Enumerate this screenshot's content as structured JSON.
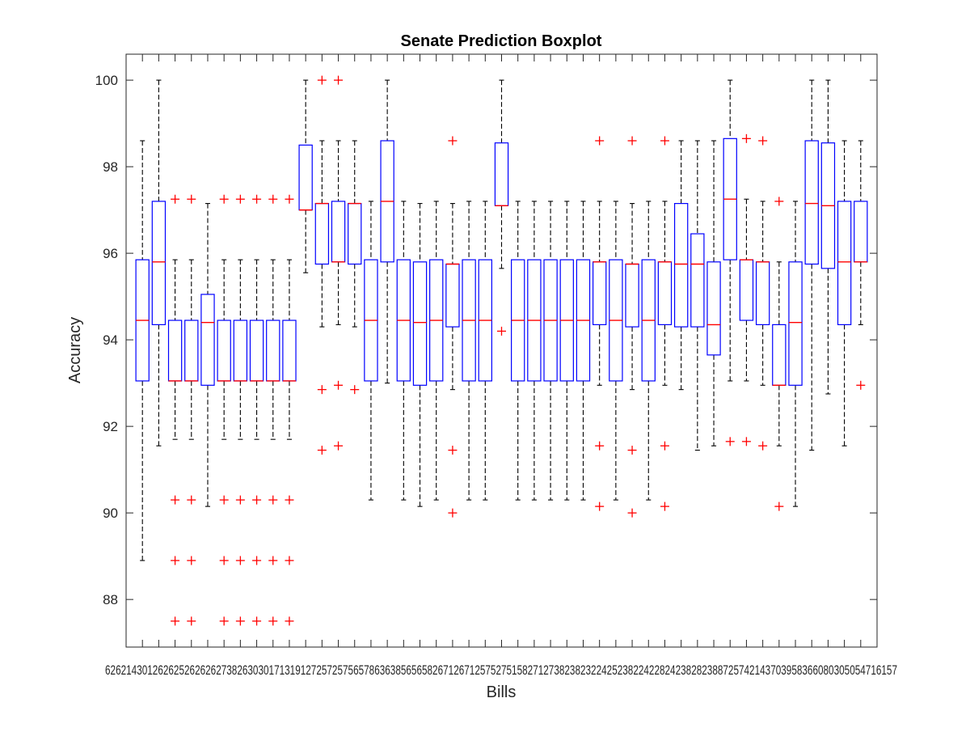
{
  "chart_data": {
    "type": "boxplot",
    "title": "Senate Prediction Boxplot",
    "xlabel": "Bills",
    "ylabel": "Accuracy",
    "ylim": [
      86.9,
      100.6
    ],
    "yticks": [
      88,
      90,
      92,
      94,
      96,
      98,
      100
    ],
    "colors": {
      "box": "#0000ff",
      "median": "#ff0000",
      "whisker": "#000000",
      "outlier": "#ff0000",
      "axes": "#262626"
    },
    "x_tick_labels_visible": "626214301262625262626273826303017131912725725756578636385656582671267125752751582712738238232242523822422824238282388725742143703958366080305054716157",
    "boxes": [
      {
        "lw": 88.9,
        "q1": 93.05,
        "med": 94.45,
        "q3": 95.85,
        "uw": 98.6,
        "out": []
      },
      {
        "lw": 91.55,
        "q1": 94.35,
        "med": 95.8,
        "q3": 97.2,
        "uw": 100.0,
        "out": []
      },
      {
        "lw": 91.7,
        "q1": 93.05,
        "med": 93.05,
        "q3": 94.45,
        "uw": 95.85,
        "out": [
          97.25,
          90.3,
          88.9,
          87.5
        ]
      },
      {
        "lw": 91.7,
        "q1": 93.05,
        "med": 93.05,
        "q3": 94.45,
        "uw": 95.85,
        "out": [
          97.25,
          90.3,
          88.9,
          87.5
        ]
      },
      {
        "lw": 90.15,
        "q1": 92.95,
        "med": 94.4,
        "q3": 95.05,
        "uw": 97.15,
        "out": []
      },
      {
        "lw": 91.7,
        "q1": 93.05,
        "med": 93.05,
        "q3": 94.45,
        "uw": 95.85,
        "out": [
          97.25,
          90.3,
          88.9,
          87.5
        ]
      },
      {
        "lw": 91.7,
        "q1": 93.05,
        "med": 93.05,
        "q3": 94.45,
        "uw": 95.85,
        "out": [
          97.25,
          90.3,
          88.9,
          87.5
        ]
      },
      {
        "lw": 91.7,
        "q1": 93.05,
        "med": 93.05,
        "q3": 94.45,
        "uw": 95.85,
        "out": [
          97.25,
          90.3,
          88.9,
          87.5
        ]
      },
      {
        "lw": 91.7,
        "q1": 93.05,
        "med": 93.05,
        "q3": 94.45,
        "uw": 95.85,
        "out": [
          97.25,
          90.3,
          88.9,
          87.5
        ]
      },
      {
        "lw": 91.7,
        "q1": 93.05,
        "med": 93.05,
        "q3": 94.45,
        "uw": 95.85,
        "out": [
          97.25,
          90.3,
          88.9,
          87.5
        ]
      },
      {
        "lw": 95.55,
        "q1": 97.0,
        "med": 97.0,
        "q3": 98.5,
        "uw": 100.0,
        "out": []
      },
      {
        "lw": 94.3,
        "q1": 95.75,
        "med": 97.15,
        "q3": 97.15,
        "uw": 98.6,
        "out": [
          100.0,
          92.85,
          91.45
        ]
      },
      {
        "lw": 94.35,
        "q1": 95.8,
        "med": 95.8,
        "q3": 97.2,
        "uw": 98.6,
        "out": [
          100.0,
          92.95,
          91.55
        ]
      },
      {
        "lw": 94.3,
        "q1": 95.75,
        "med": 97.15,
        "q3": 97.15,
        "uw": 98.6,
        "out": [
          92.85
        ]
      },
      {
        "lw": 90.3,
        "q1": 93.05,
        "med": 94.45,
        "q3": 95.85,
        "uw": 97.2,
        "out": []
      },
      {
        "lw": 93.0,
        "q1": 95.8,
        "med": 97.2,
        "q3": 98.6,
        "uw": 100.0,
        "out": []
      },
      {
        "lw": 90.3,
        "q1": 93.05,
        "med": 94.45,
        "q3": 95.85,
        "uw": 97.2,
        "out": []
      },
      {
        "lw": 90.15,
        "q1": 92.95,
        "med": 94.4,
        "q3": 95.8,
        "uw": 97.15,
        "out": []
      },
      {
        "lw": 90.3,
        "q1": 93.05,
        "med": 94.45,
        "q3": 95.85,
        "uw": 97.2,
        "out": []
      },
      {
        "lw": 92.85,
        "q1": 94.3,
        "med": 95.75,
        "q3": 95.75,
        "uw": 97.15,
        "out": [
          98.6,
          91.45,
          90.0
        ]
      },
      {
        "lw": 90.3,
        "q1": 93.05,
        "med": 94.45,
        "q3": 95.85,
        "uw": 97.2,
        "out": []
      },
      {
        "lw": 90.3,
        "q1": 93.05,
        "med": 94.45,
        "q3": 95.85,
        "uw": 97.2,
        "out": []
      },
      {
        "lw": 95.65,
        "q1": 97.1,
        "med": 97.1,
        "q3": 98.55,
        "uw": 100.0,
        "out": [
          94.2
        ]
      },
      {
        "lw": 90.3,
        "q1": 93.05,
        "med": 94.45,
        "q3": 95.85,
        "uw": 97.2,
        "out": []
      },
      {
        "lw": 90.3,
        "q1": 93.05,
        "med": 94.45,
        "q3": 95.85,
        "uw": 97.2,
        "out": []
      },
      {
        "lw": 90.3,
        "q1": 93.05,
        "med": 94.45,
        "q3": 95.85,
        "uw": 97.2,
        "out": []
      },
      {
        "lw": 90.3,
        "q1": 93.05,
        "med": 94.45,
        "q3": 95.85,
        "uw": 97.2,
        "out": []
      },
      {
        "lw": 90.3,
        "q1": 93.05,
        "med": 94.45,
        "q3": 95.85,
        "uw": 97.2,
        "out": []
      },
      {
        "lw": 92.95,
        "q1": 94.35,
        "med": 95.8,
        "q3": 95.8,
        "uw": 97.2,
        "out": [
          98.6,
          91.55,
          90.15
        ]
      },
      {
        "lw": 90.3,
        "q1": 93.05,
        "med": 94.45,
        "q3": 95.85,
        "uw": 97.2,
        "out": []
      },
      {
        "lw": 92.85,
        "q1": 94.3,
        "med": 95.75,
        "q3": 95.75,
        "uw": 97.15,
        "out": [
          98.6,
          91.45,
          90.0
        ]
      },
      {
        "lw": 90.3,
        "q1": 93.05,
        "med": 94.45,
        "q3": 95.85,
        "uw": 97.2,
        "out": []
      },
      {
        "lw": 92.95,
        "q1": 94.35,
        "med": 95.8,
        "q3": 95.8,
        "uw": 97.2,
        "out": [
          98.6,
          91.55,
          90.15
        ]
      },
      {
        "lw": 92.85,
        "q1": 94.3,
        "med": 95.75,
        "q3": 97.15,
        "uw": 98.6,
        "out": []
      },
      {
        "lw": 91.45,
        "q1": 94.3,
        "med": 95.75,
        "q3": 96.45,
        "uw": 98.6,
        "out": []
      },
      {
        "lw": 91.55,
        "q1": 93.65,
        "med": 94.35,
        "q3": 95.8,
        "uw": 98.6,
        "out": []
      },
      {
        "lw": 93.05,
        "q1": 95.85,
        "med": 97.25,
        "q3": 98.65,
        "uw": 100.0,
        "out": [
          91.65
        ]
      },
      {
        "lw": 93.05,
        "q1": 94.45,
        "med": 95.85,
        "q3": 95.85,
        "uw": 97.25,
        "out": [
          98.65,
          91.65
        ]
      },
      {
        "lw": 92.95,
        "q1": 94.35,
        "med": 95.8,
        "q3": 95.8,
        "uw": 97.2,
        "out": [
          98.6,
          91.55
        ]
      },
      {
        "lw": 91.55,
        "q1": 92.95,
        "med": 92.95,
        "q3": 94.35,
        "uw": 95.8,
        "out": [
          97.2,
          90.15
        ]
      },
      {
        "lw": 90.15,
        "q1": 92.95,
        "med": 94.4,
        "q3": 95.8,
        "uw": 97.2,
        "out": []
      },
      {
        "lw": 91.45,
        "q1": 95.75,
        "med": 97.15,
        "q3": 98.6,
        "uw": 100.0,
        "out": []
      },
      {
        "lw": 92.75,
        "q1": 95.65,
        "med": 97.1,
        "q3": 98.55,
        "uw": 100.0,
        "out": []
      },
      {
        "lw": 91.55,
        "q1": 94.35,
        "med": 95.8,
        "q3": 97.2,
        "uw": 98.6,
        "out": []
      },
      {
        "lw": 94.35,
        "q1": 95.8,
        "med": 95.8,
        "q3": 97.2,
        "uw": 98.6,
        "out": [
          92.95
        ]
      }
    ]
  }
}
